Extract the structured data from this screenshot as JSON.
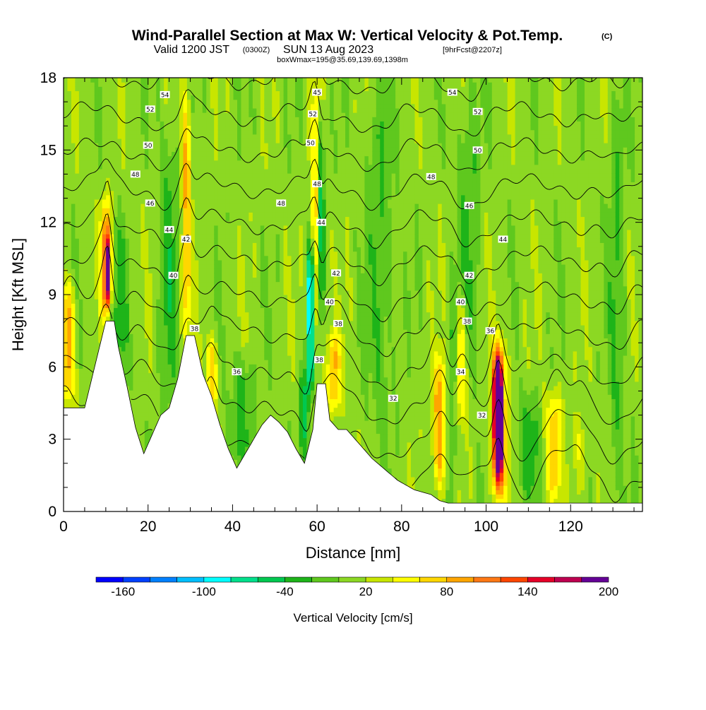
{
  "title": {
    "main": "Wind-Parallel Section at Max W: Vertical Velocity & Pot.Temp.",
    "copyright": "(C)",
    "valid_prefix": "Valid 1200 JST",
    "valid_z": "(0300Z)",
    "valid_day": "SUN 13 Aug 2023",
    "forecast": "[9hrFcst@2207z]",
    "subtitle": "boxWmax=195@35.69,139.69,1398m"
  },
  "colors": {
    "terrain": "#ffffff",
    "contour": "#000000",
    "frame": "#000000"
  },
  "chart_data": {
    "type": "heatmap",
    "xlabel": "Distance [nm]",
    "ylabel": "Height [Kft MSL]",
    "xlim": [
      0,
      137
    ],
    "ylim": [
      0,
      18
    ],
    "x_ticks": [
      0,
      20,
      40,
      60,
      80,
      100,
      120
    ],
    "y_ticks": [
      0,
      3,
      6,
      9,
      12,
      15,
      18
    ],
    "colorbar": {
      "title": "Vertical Velocity [cm/s]",
      "tick_labels": [
        "-160",
        "-100",
        "-40",
        "20",
        "80",
        "140",
        "200"
      ],
      "tick_values": [
        -160,
        -100,
        -40,
        20,
        80,
        140,
        200
      ],
      "range": [
        -180,
        200
      ],
      "step": 20,
      "bins": [
        {
          "from": -180,
          "to": -160,
          "color": "#0000ff"
        },
        {
          "from": -160,
          "to": -140,
          "color": "#0040ff"
        },
        {
          "from": -140,
          "to": -120,
          "color": "#0080ff"
        },
        {
          "from": -120,
          "to": -100,
          "color": "#00bfff"
        },
        {
          "from": -100,
          "to": -80,
          "color": "#00ffff"
        },
        {
          "from": -80,
          "to": -60,
          "color": "#00e08c"
        },
        {
          "from": -60,
          "to": -40,
          "color": "#00c850"
        },
        {
          "from": -40,
          "to": -20,
          "color": "#1eb419"
        },
        {
          "from": -20,
          "to": 0,
          "color": "#5fc81e"
        },
        {
          "from": 0,
          "to": 20,
          "color": "#8cd823"
        },
        {
          "from": 20,
          "to": 40,
          "color": "#c8e600"
        },
        {
          "from": 40,
          "to": 60,
          "color": "#ffff00"
        },
        {
          "from": 60,
          "to": 80,
          "color": "#ffd700"
        },
        {
          "from": 80,
          "to": 100,
          "color": "#ffa500"
        },
        {
          "from": 100,
          "to": 120,
          "color": "#ff7814"
        },
        {
          "from": 120,
          "to": 140,
          "color": "#ff4600"
        },
        {
          "from": 140,
          "to": 160,
          "color": "#e60028"
        },
        {
          "from": 160,
          "to": 180,
          "color": "#be0050"
        },
        {
          "from": 180,
          "to": 200,
          "color": "#640096"
        }
      ]
    },
    "terrain_profile": {
      "x": [
        0,
        5,
        10,
        12,
        13,
        15,
        17,
        19,
        21,
        23,
        25,
        27,
        29,
        31,
        33,
        35,
        37,
        39,
        41,
        43,
        45,
        47,
        49,
        51,
        53,
        55,
        57,
        59,
        60,
        62,
        63,
        65,
        67,
        69,
        71,
        73,
        75,
        77,
        79,
        81,
        83,
        85,
        87,
        89,
        91,
        93,
        95,
        97,
        100,
        110,
        120,
        130,
        137
      ],
      "height_kft": [
        4.3,
        4.3,
        7.9,
        7.9,
        6.8,
        5.2,
        3.5,
        2.4,
        3.2,
        4.0,
        4.3,
        5.5,
        7.3,
        7.3,
        5.7,
        4.8,
        3.6,
        2.6,
        1.8,
        2.4,
        3.0,
        3.6,
        4.0,
        3.7,
        3.3,
        2.6,
        2.0,
        3.4,
        5.3,
        5.3,
        3.8,
        3.4,
        3.4,
        3.0,
        2.6,
        2.2,
        1.9,
        1.6,
        1.3,
        1.1,
        0.9,
        0.8,
        0.7,
        0.45,
        0.35,
        0.35,
        0.35,
        0.35,
        0.35,
        0.35,
        0.35,
        0.35,
        0.35
      ]
    },
    "background_w": 10,
    "updrafts": [
      {
        "x": 1,
        "width": 1.6,
        "z_bottom": 4.5,
        "z_top": 9.5,
        "peak_w": 95
      },
      {
        "x": 10,
        "width": 1.2,
        "z_bottom": 8.0,
        "z_top": 13.0,
        "peak_w": 110
      },
      {
        "x": 10.6,
        "width": 0.7,
        "z_bottom": 8.5,
        "z_top": 11.5,
        "peak_w": 130
      },
      {
        "x": 29,
        "width": 1.1,
        "z_bottom": 7.0,
        "z_top": 17.5,
        "peak_w": 85
      },
      {
        "x": 35,
        "width": 1.2,
        "z_bottom": 4.2,
        "z_top": 7.2,
        "peak_w": 75
      },
      {
        "x": 59.5,
        "width": 0.9,
        "z_bottom": 5.2,
        "z_top": 17.8,
        "peak_w": 70
      },
      {
        "x": 64,
        "width": 1.6,
        "z_bottom": 4.0,
        "z_top": 7.5,
        "peak_w": 80
      },
      {
        "x": 89,
        "width": 1.6,
        "z_bottom": 0.8,
        "z_top": 6.5,
        "peak_w": 95
      },
      {
        "x": 94,
        "width": 1.4,
        "z_bottom": 3.5,
        "z_top": 9.0,
        "peak_w": 70
      },
      {
        "x": 103,
        "width": 1.7,
        "z_bottom": 0.5,
        "z_top": 7.2,
        "peak_w": 140
      },
      {
        "x": 102.8,
        "width": 0.9,
        "z_bottom": 1.5,
        "z_top": 6.3,
        "peak_w": 195
      },
      {
        "x": 116,
        "width": 1.8,
        "z_bottom": 0.5,
        "z_top": 5.0,
        "peak_w": 75
      },
      {
        "x": 122,
        "width": 1.5,
        "z_bottom": 0.5,
        "z_top": 4.0,
        "peak_w": 40
      }
    ],
    "downdrafts": [
      {
        "x": 58.5,
        "width": 1.0,
        "z_bottom": 5.0,
        "z_top": 11.0,
        "peak_w": -110
      },
      {
        "x": 61,
        "width": 0.7,
        "z_bottom": 8.0,
        "z_top": 16.5,
        "peak_w": -50
      },
      {
        "x": 13,
        "width": 2.2,
        "z_bottom": 5.5,
        "z_top": 12.0,
        "peak_w": -25
      },
      {
        "x": 25,
        "width": 2.2,
        "z_bottom": 4.0,
        "z_top": 16.0,
        "peak_w": -25
      },
      {
        "x": 42,
        "width": 2.5,
        "z_bottom": 2.0,
        "z_top": 6.5,
        "peak_w": -30
      },
      {
        "x": 57,
        "width": 1.5,
        "z_bottom": 2.0,
        "z_top": 6.0,
        "peak_w": -35
      },
      {
        "x": 75,
        "width": 3.0,
        "z_bottom": 3.0,
        "z_top": 18.0,
        "peak_w": -20
      },
      {
        "x": 92,
        "width": 1.4,
        "z_bottom": 0.6,
        "z_top": 9.0,
        "peak_w": -25
      },
      {
        "x": 96,
        "width": 2.5,
        "z_bottom": 6.0,
        "z_top": 18.0,
        "peak_w": -20
      },
      {
        "x": 110,
        "width": 2.5,
        "z_bottom": 0.5,
        "z_top": 5.0,
        "peak_w": -30
      },
      {
        "x": 131,
        "width": 2.0,
        "z_bottom": 1.0,
        "z_top": 18.0,
        "peak_w": -20
      }
    ],
    "pot_temp_contours": {
      "levels": [
        32,
        34,
        36,
        38,
        40,
        42,
        44,
        46,
        48,
        50,
        52,
        54
      ],
      "labels": [
        {
          "text": "54",
          "x": 24,
          "z": 17.3
        },
        {
          "text": "52",
          "x": 20.5,
          "z": 16.7
        },
        {
          "text": "50",
          "x": 20,
          "z": 15.2
        },
        {
          "text": "48",
          "x": 17,
          "z": 14.0
        },
        {
          "text": "46",
          "x": 20.5,
          "z": 12.8
        },
        {
          "text": "44",
          "x": 25,
          "z": 11.7
        },
        {
          "text": "42",
          "x": 29,
          "z": 11.3
        },
        {
          "text": "40",
          "x": 26,
          "z": 9.8
        },
        {
          "text": "38",
          "x": 31,
          "z": 7.6
        },
        {
          "text": "36",
          "x": 41,
          "z": 5.8
        },
        {
          "text": "45",
          "x": 60,
          "z": 17.4
        },
        {
          "text": "52",
          "x": 59,
          "z": 16.5
        },
        {
          "text": "50",
          "x": 58.5,
          "z": 15.3
        },
        {
          "text": "48",
          "x": 60,
          "z": 13.6
        },
        {
          "text": "48",
          "x": 51.5,
          "z": 12.8
        },
        {
          "text": "44",
          "x": 61,
          "z": 12.0
        },
        {
          "text": "42",
          "x": 64.5,
          "z": 9.9
        },
        {
          "text": "40",
          "x": 63,
          "z": 8.7
        },
        {
          "text": "38",
          "x": 65,
          "z": 7.8
        },
        {
          "text": "38",
          "x": 60.5,
          "z": 6.3
        },
        {
          "text": "54",
          "x": 92,
          "z": 17.4
        },
        {
          "text": "52",
          "x": 98,
          "z": 16.6
        },
        {
          "text": "50",
          "x": 98,
          "z": 15.0
        },
        {
          "text": "48",
          "x": 87,
          "z": 13.9
        },
        {
          "text": "46",
          "x": 96,
          "z": 12.7
        },
        {
          "text": "44",
          "x": 104,
          "z": 11.3
        },
        {
          "text": "42",
          "x": 96,
          "z": 9.8
        },
        {
          "text": "40",
          "x": 94,
          "z": 8.7
        },
        {
          "text": "38",
          "x": 95.5,
          "z": 7.9
        },
        {
          "text": "36",
          "x": 101,
          "z": 7.5
        },
        {
          "text": "34",
          "x": 94,
          "z": 5.8
        },
        {
          "text": "32",
          "x": 78,
          "z": 4.7
        },
        {
          "text": "32",
          "x": 99,
          "z": 4.0
        }
      ]
    }
  }
}
